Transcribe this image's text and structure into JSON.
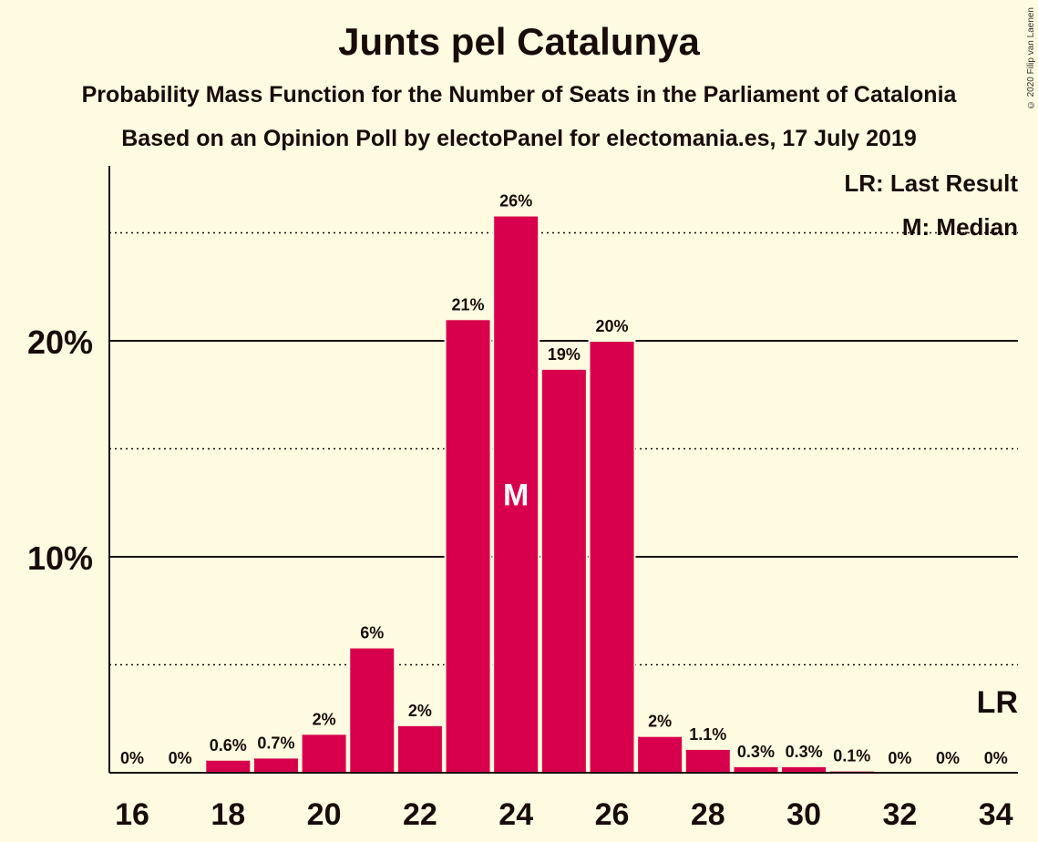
{
  "header": {
    "title": "Junts pel Catalunya",
    "subtitle1": "Probability Mass Function for the Number of Seats in the Parliament of Catalonia",
    "subtitle2": "Based on an Opinion Poll by electoPanel for electomania.es, 17 July 2019",
    "copyright": "© 2020 Filip van Laenen"
  },
  "legend": {
    "last_result": "LR: Last Result",
    "median": "M: Median"
  },
  "colors": {
    "background": "#fffbe0",
    "bar": "#d8004c",
    "text": "#1a0b0b"
  },
  "chart_data": {
    "type": "bar",
    "categories": [
      16,
      17,
      18,
      19,
      20,
      21,
      22,
      23,
      24,
      25,
      26,
      27,
      28,
      29,
      30,
      31,
      32,
      33,
      34
    ],
    "values": [
      0,
      0,
      0.6,
      0.7,
      1.8,
      5.8,
      2.2,
      21,
      25.8,
      18.7,
      20,
      1.7,
      1.1,
      0.3,
      0.3,
      0.1,
      0,
      0,
      0
    ],
    "value_labels": [
      "0%",
      "0%",
      "0.6%",
      "0.7%",
      "2%",
      "6%",
      "2%",
      "21%",
      "26%",
      "19%",
      "20%",
      "2%",
      "1.1%",
      "0.3%",
      "0.3%",
      "0.1%",
      "0%",
      "0%",
      "0%"
    ],
    "x_tick_labels": [
      "16",
      "18",
      "20",
      "22",
      "24",
      "26",
      "28",
      "30",
      "32",
      "34"
    ],
    "y_tick_labels": [
      "10%",
      "20%"
    ],
    "ylim": [
      0,
      28
    ],
    "median_seat": 24,
    "median_label": "M",
    "last_result_seat": 34,
    "last_result_label": "LR"
  }
}
